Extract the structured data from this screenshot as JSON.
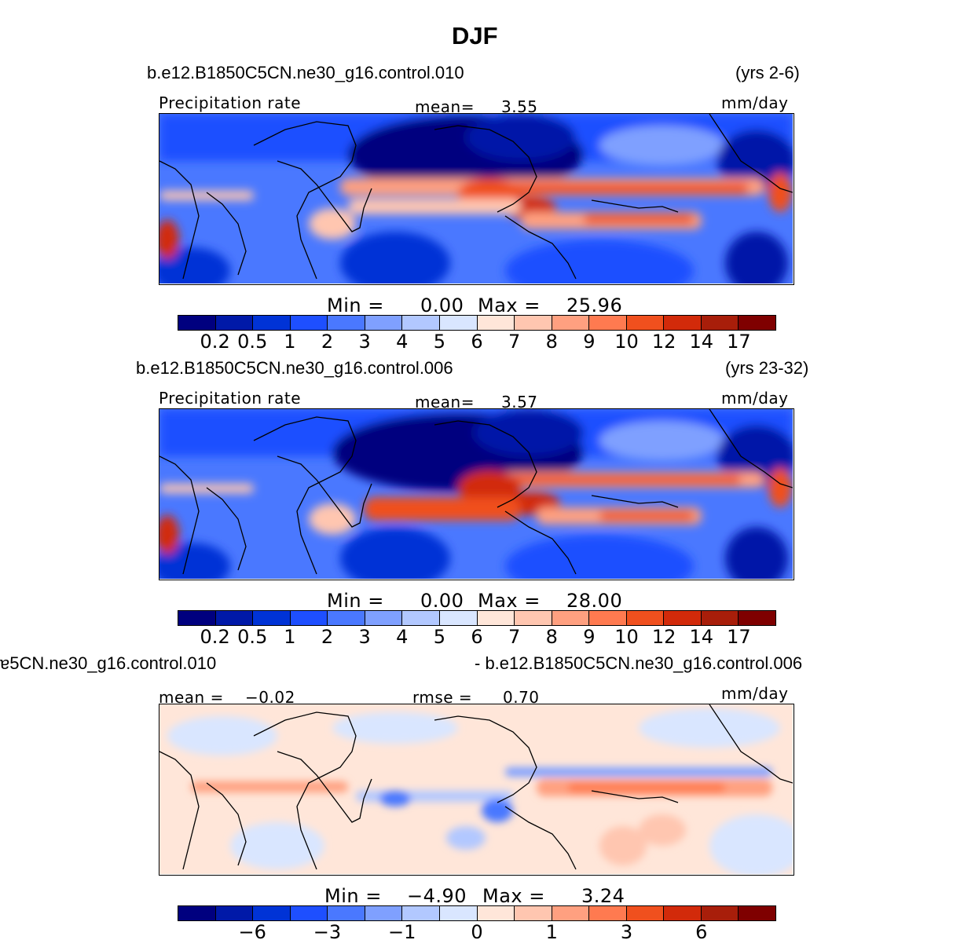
{
  "figure": {
    "title": "DJF"
  },
  "panels": [
    {
      "case_left": "b.e12.B1850C5CN.ne30_g16.control.010",
      "case_right": "(yrs 2-6)",
      "var_left": "Precipitation  rate",
      "mean_label": "mean=",
      "mean_value": "3.55",
      "units": "mm/day",
      "min_label": "Min  =",
      "min_value": "0.00",
      "max_label": "Max  =",
      "max_value": "25.96",
      "ticks": [
        "0.2",
        "0.5",
        "1",
        "2",
        "3",
        "4",
        "5",
        "6",
        "7",
        "8",
        "9",
        "10",
        "12",
        "14",
        "17"
      ]
    },
    {
      "case_left": "b.e12.B1850C5CN.ne30_g16.control.006",
      "case_right": "(yrs 23-32)",
      "var_left": "Precipitation  rate",
      "mean_label": "mean=",
      "mean_value": "3.57",
      "units": "mm/day",
      "min_label": "Min  =",
      "min_value": "0.00",
      "max_label": "Max  =",
      "max_value": "28.00",
      "ticks": [
        "0.2",
        "0.5",
        "1",
        "2",
        "3",
        "4",
        "5",
        "6",
        "7",
        "8",
        "9",
        "10",
        "12",
        "14",
        "17"
      ]
    },
    {
      "case_left": "ɐ5CN.ne30_g16.control.010",
      "case_right": "- b.e12.B1850C5CN.ne30_g16.control.006",
      "var_left": "mean  =",
      "mean_value_left": "−0.02",
      "mean_label": "rmse  =",
      "mean_value": "0.70",
      "units": "mm/day",
      "min_label": "Min  =",
      "min_value": "−4.90",
      "max_label": "Max  =",
      "max_value": "3.24",
      "ticks": [
        "−6",
        "−3",
        "−1",
        "0",
        "1",
        "3",
        "6"
      ]
    }
  ],
  "colorbar_colors": [
    "#00007f",
    "#0019a8",
    "#0033d6",
    "#1e4fff",
    "#4a78ff",
    "#7fa0ff",
    "#b2c8ff",
    "#d9e6ff",
    "#ffe6d9",
    "#ffc6b0",
    "#ffa080",
    "#ff7a50",
    "#f0501e",
    "#d22a0a",
    "#a81e0a",
    "#7f0000"
  ],
  "chart_data": [
    {
      "type": "heatmap",
      "title": "DJF",
      "variable": "Precipitation  rate",
      "units": "mm/day",
      "mean": 3.55,
      "min": 0.0,
      "max": 25.96,
      "levels": [
        0.2,
        0.5,
        1,
        2,
        3,
        4,
        5,
        6,
        7,
        8,
        9,
        10,
        12,
        14,
        17
      ]
    },
    {
      "type": "heatmap",
      "title": "DJF",
      "variable": "Precipitation  rate",
      "units": "mm/day",
      "mean": 3.57,
      "min": 0.0,
      "max": 28.0,
      "levels": [
        0.2,
        0.5,
        1,
        2,
        3,
        4,
        5,
        6,
        7,
        8,
        9,
        10,
        12,
        14,
        17
      ]
    },
    {
      "type": "heatmap",
      "title": "DJF",
      "units": "mm/day",
      "mean": -0.02,
      "rmse": 0.7,
      "min": -4.9,
      "max": 3.24,
      "levels": [
        -6,
        -3,
        -1,
        0,
        1,
        3,
        6
      ]
    }
  ]
}
